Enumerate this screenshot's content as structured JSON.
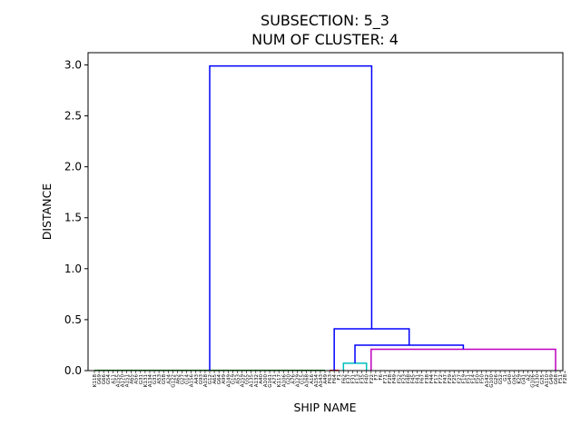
{
  "chart_data": {
    "type": "dendrogram",
    "title_line1": "SUBSECTION: 5_3",
    "title_line2": "NUM OF CLUSTER: 4",
    "xlabel": "SHIP NAME",
    "ylabel": "DISTANCE",
    "ylim": [
      0,
      3.12
    ],
    "yticks": [
      "0.0",
      "0.5",
      "1.0",
      "1.5",
      "2.0",
      "2.5",
      "3.0"
    ],
    "ytick_values": [
      0,
      0.5,
      1.0,
      1.5,
      2.0,
      2.5,
      3.0
    ],
    "leaves": [
      "K118",
      "G69",
      "G66",
      "G54",
      "A11",
      "A155",
      "A170",
      "A151",
      "A65",
      "A56",
      "G31",
      "K131",
      "A134",
      "G31",
      "A53",
      "G58",
      "A24",
      "G122",
      "A62",
      "G27",
      "G14",
      "A156",
      "A43",
      "G93",
      "A158",
      "G12",
      "A65",
      "G64",
      "A99",
      "A149",
      "G19",
      "A53",
      "A159",
      "G55",
      "A135",
      "A132",
      "A40",
      "A100",
      "G161",
      "A71",
      "K117",
      "A106",
      "G20",
      "A76",
      "A129",
      "G15",
      "A168",
      "A16",
      "A154",
      "A143",
      "A49",
      "F63",
      "F64",
      "F1",
      "F62",
      "F37",
      "F31",
      "F13",
      "F35",
      "F40",
      "F22",
      "F7",
      "F6",
      "F71",
      "F28",
      "F49",
      "F52",
      "F23",
      "F48",
      "F45",
      "F41",
      "F67",
      "F38",
      "F44",
      "F17",
      "F72",
      "F47",
      "F29",
      "F25",
      "F27",
      "F19",
      "F51",
      "F14",
      "F50",
      "F50",
      "A142",
      "G100",
      "G26",
      "G52",
      "G1",
      "G40",
      "G95",
      "K29",
      "G41",
      "A2",
      "G106",
      "A130",
      "G35",
      "A110",
      "G49",
      "G68",
      "F51",
      "F28"
    ],
    "clusters": [
      {
        "color": "#008000",
        "leaf_start": 0,
        "leaf_end": 50,
        "height": 0.002
      },
      {
        "color": "#ff0000",
        "leaf_start": 51,
        "leaf_end": 53,
        "height": 0.002
      },
      {
        "color": "#00bfbf",
        "leaf_start": 54,
        "leaf_end": 59,
        "height": 0.072
      },
      {
        "color": "#bf00bf",
        "leaf_start": 60,
        "leaf_end": 100,
        "height": 0.21
      }
    ],
    "links": [
      {
        "a": "c2",
        "b": "c3",
        "height": 0.25,
        "color": "#0000ff"
      },
      {
        "a": "c1",
        "b": "m1",
        "height": 0.41,
        "color": "#0000ff"
      },
      {
        "a": "c0",
        "b": "m2",
        "height": 2.99,
        "color": "#0000ff"
      }
    ]
  }
}
